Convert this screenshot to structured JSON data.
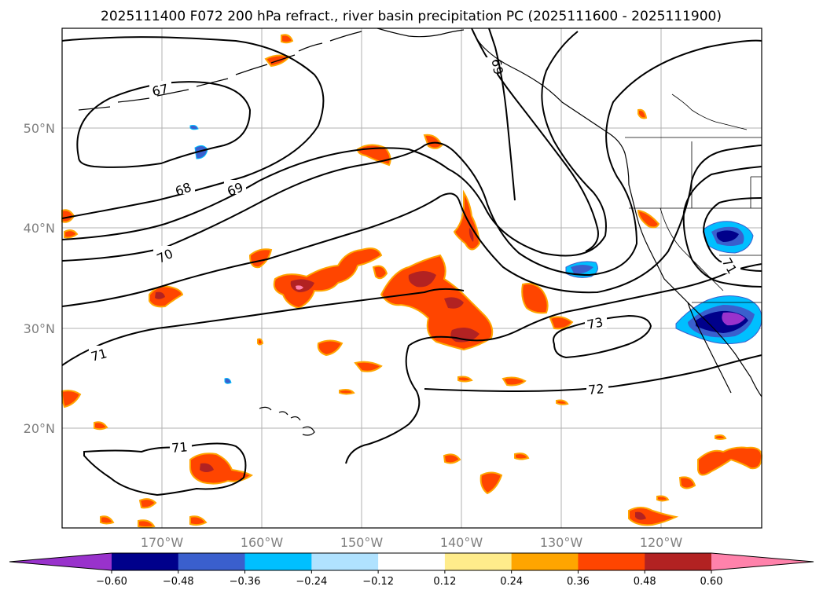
{
  "title": "2025111400 F072 200 hPa refract., river basin precipitation PC (2025111600 - 2025111900)",
  "lon_labels": [
    "170°W",
    "160°W",
    "150°W",
    "140°W",
    "130°W",
    "120°W"
  ],
  "lat_labels": [
    "50°N",
    "40°N",
    "30°N",
    "20°N"
  ],
  "contour_labels": {
    "c67": "67",
    "c68": "68",
    "c69a": "69",
    "c69b": "69",
    "c70": "70",
    "c71a": "71",
    "c71b": "71",
    "c71c": "71",
    "c72": "72",
    "c73": "73"
  },
  "colorbar": {
    "ticks": [
      "−0.60",
      "−0.48",
      "−0.36",
      "−0.24",
      "−0.12",
      "0.12",
      "0.24",
      "0.36",
      "0.48",
      "0.60"
    ],
    "colors": [
      "#9932cc",
      "#00008b",
      "#3a5fcd",
      "#00bfff",
      "#b0e2ff",
      "#ffffff",
      "#ffec8b",
      "#ffa500",
      "#ff4500",
      "#b22222",
      "#ff82ab"
    ]
  },
  "colors": {
    "orange_red": "#ff4500",
    "dark_red": "#b22222",
    "pink": "#ff82ab",
    "orange": "#ffa500",
    "yellow": "#ffec8b",
    "purple": "#9932cc",
    "navy": "#00008b",
    "blue": "#3a5fcd",
    "sky": "#00bfff"
  }
}
